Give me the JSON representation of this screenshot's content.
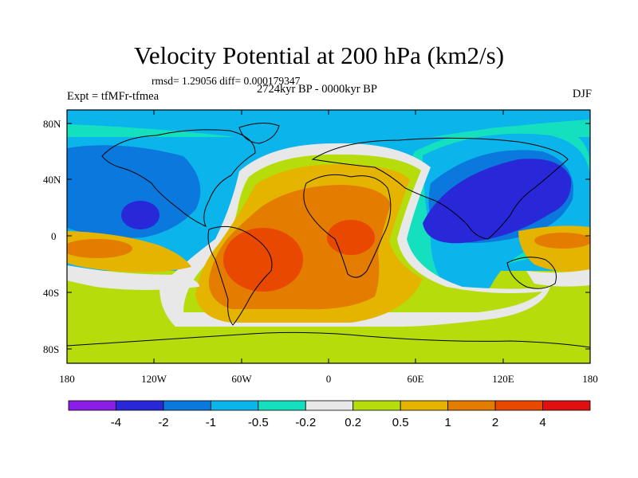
{
  "title": "Velocity Potential at 200 hPa (km2/s)",
  "rmsd_line": "rmsd= 1.29056 diff= 0.000179347",
  "period_line": "2724kyr BP - 0000kyr BP",
  "expt_line": "Expt = tfMFr-tfmea",
  "season": "DJF",
  "map": {
    "lat_ticks": [
      "80N",
      "40N",
      "0",
      "40S",
      "80S"
    ],
    "lon_ticks": [
      "180",
      "120W",
      "60W",
      "0",
      "60E",
      "120E",
      "180"
    ]
  },
  "colorbar": {
    "colors": [
      "#8a1de6",
      "#2828d8",
      "#0a78dc",
      "#0cb4ec",
      "#14e0c0",
      "#e8e8e8",
      "#b6dc0c",
      "#e4b400",
      "#e47c00",
      "#e84800",
      "#e01010"
    ],
    "labels": [
      "-4",
      "-2",
      "-1",
      "-0.5",
      "-0.2",
      "0.2",
      "0.5",
      "1",
      "2",
      "4"
    ]
  }
}
